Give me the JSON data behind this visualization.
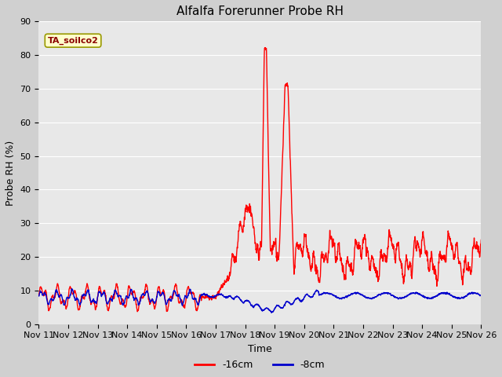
{
  "title": "Alfalfa Forerunner Probe RH",
  "xlabel": "Time",
  "ylabel": "Probe RH (%)",
  "ylim": [
    0,
    90
  ],
  "yticks": [
    0,
    10,
    20,
    30,
    40,
    50,
    60,
    70,
    80,
    90
  ],
  "x_tick_labels": [
    "Nov 11",
    "Nov 12",
    "Nov 13",
    "Nov 14",
    "Nov 15",
    "Nov 16",
    "Nov 17",
    "Nov 18",
    "Nov 19",
    "Nov 20",
    "Nov 21",
    "Nov 22",
    "Nov 23",
    "Nov 24",
    "Nov 25",
    "Nov 26"
  ],
  "legend_label_red": "-16cm",
  "legend_label_blue": "-8cm",
  "legend_color_red": "#ff0000",
  "legend_color_blue": "#0000cc",
  "annotation_text": "TA_soilco2",
  "annotation_color": "#8b0000",
  "annotation_bg": "#ffffcc",
  "annotation_edge": "#999900",
  "plot_bg_color": "#e8e8e8",
  "fig_bg_color": "#d0d0d0",
  "grid_color": "#ffffff",
  "title_fontsize": 11,
  "axis_label_fontsize": 9,
  "tick_fontsize": 8,
  "line_width": 1.0
}
